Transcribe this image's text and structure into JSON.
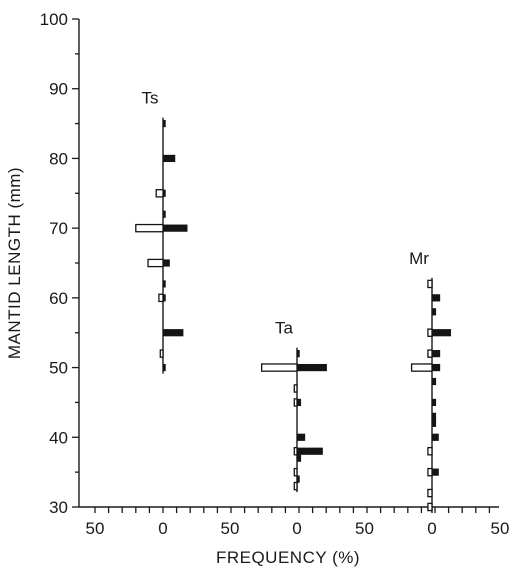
{
  "chart_data": {
    "type": "bar",
    "orientation": "horizontal-paired",
    "ylabel": "MANTID LENGTH (mm)",
    "xlabel": "FREQUENCY (%)",
    "ylim": [
      30,
      100
    ],
    "y_ticks": [
      "30",
      "40",
      "50",
      "60",
      "70",
      "80",
      "90",
      "100"
    ],
    "x_ticks": [
      "50",
      "0",
      "50",
      "0",
      "50",
      "0",
      "50"
    ],
    "bin_width_mm": 1,
    "legend": "none",
    "grid": false,
    "panels": [
      {
        "name": "Ts",
        "open_left": [
          {
            "y": 75,
            "value": 5
          },
          {
            "y": 70,
            "value": 20
          },
          {
            "y": 65,
            "value": 11
          },
          {
            "y": 60,
            "value": 3
          },
          {
            "y": 52,
            "value": 2
          }
        ],
        "filled_right": [
          {
            "y": 85,
            "value": 2
          },
          {
            "y": 80,
            "value": 9
          },
          {
            "y": 75,
            "value": 2
          },
          {
            "y": 72,
            "value": 2
          },
          {
            "y": 70,
            "value": 18
          },
          {
            "y": 65,
            "value": 5
          },
          {
            "y": 62,
            "value": 2
          },
          {
            "y": 60,
            "value": 2
          },
          {
            "y": 55,
            "value": 15
          },
          {
            "y": 50,
            "value": 2
          }
        ]
      },
      {
        "name": "Ta",
        "open_left": [
          {
            "y": 50,
            "value": 26
          },
          {
            "y": 47,
            "value": 2
          },
          {
            "y": 45,
            "value": 2
          },
          {
            "y": 38,
            "value": 2
          },
          {
            "y": 35,
            "value": 2
          },
          {
            "y": 33,
            "value": 2
          }
        ],
        "filled_right": [
          {
            "y": 52,
            "value": 2
          },
          {
            "y": 50,
            "value": 22
          },
          {
            "y": 45,
            "value": 3
          },
          {
            "y": 40,
            "value": 6
          },
          {
            "y": 38,
            "value": 19
          },
          {
            "y": 37,
            "value": 3
          },
          {
            "y": 34,
            "value": 2
          }
        ]
      },
      {
        "name": "Mr",
        "open_left": [
          {
            "y": 62,
            "value": 3
          },
          {
            "y": 55,
            "value": 3
          },
          {
            "y": 52,
            "value": 3
          },
          {
            "y": 50,
            "value": 15
          },
          {
            "y": 38,
            "value": 3
          },
          {
            "y": 35,
            "value": 3
          },
          {
            "y": 32,
            "value": 3
          },
          {
            "y": 30,
            "value": 3
          }
        ],
        "filled_right": [
          {
            "y": 60,
            "value": 6
          },
          {
            "y": 58,
            "value": 3
          },
          {
            "y": 55,
            "value": 14
          },
          {
            "y": 52,
            "value": 6
          },
          {
            "y": 50,
            "value": 6
          },
          {
            "y": 48,
            "value": 3
          },
          {
            "y": 45,
            "value": 3
          },
          {
            "y": 43,
            "value": 3
          },
          {
            "y": 42,
            "value": 3
          },
          {
            "y": 40,
            "value": 5
          },
          {
            "y": 35,
            "value": 5
          }
        ]
      }
    ]
  }
}
